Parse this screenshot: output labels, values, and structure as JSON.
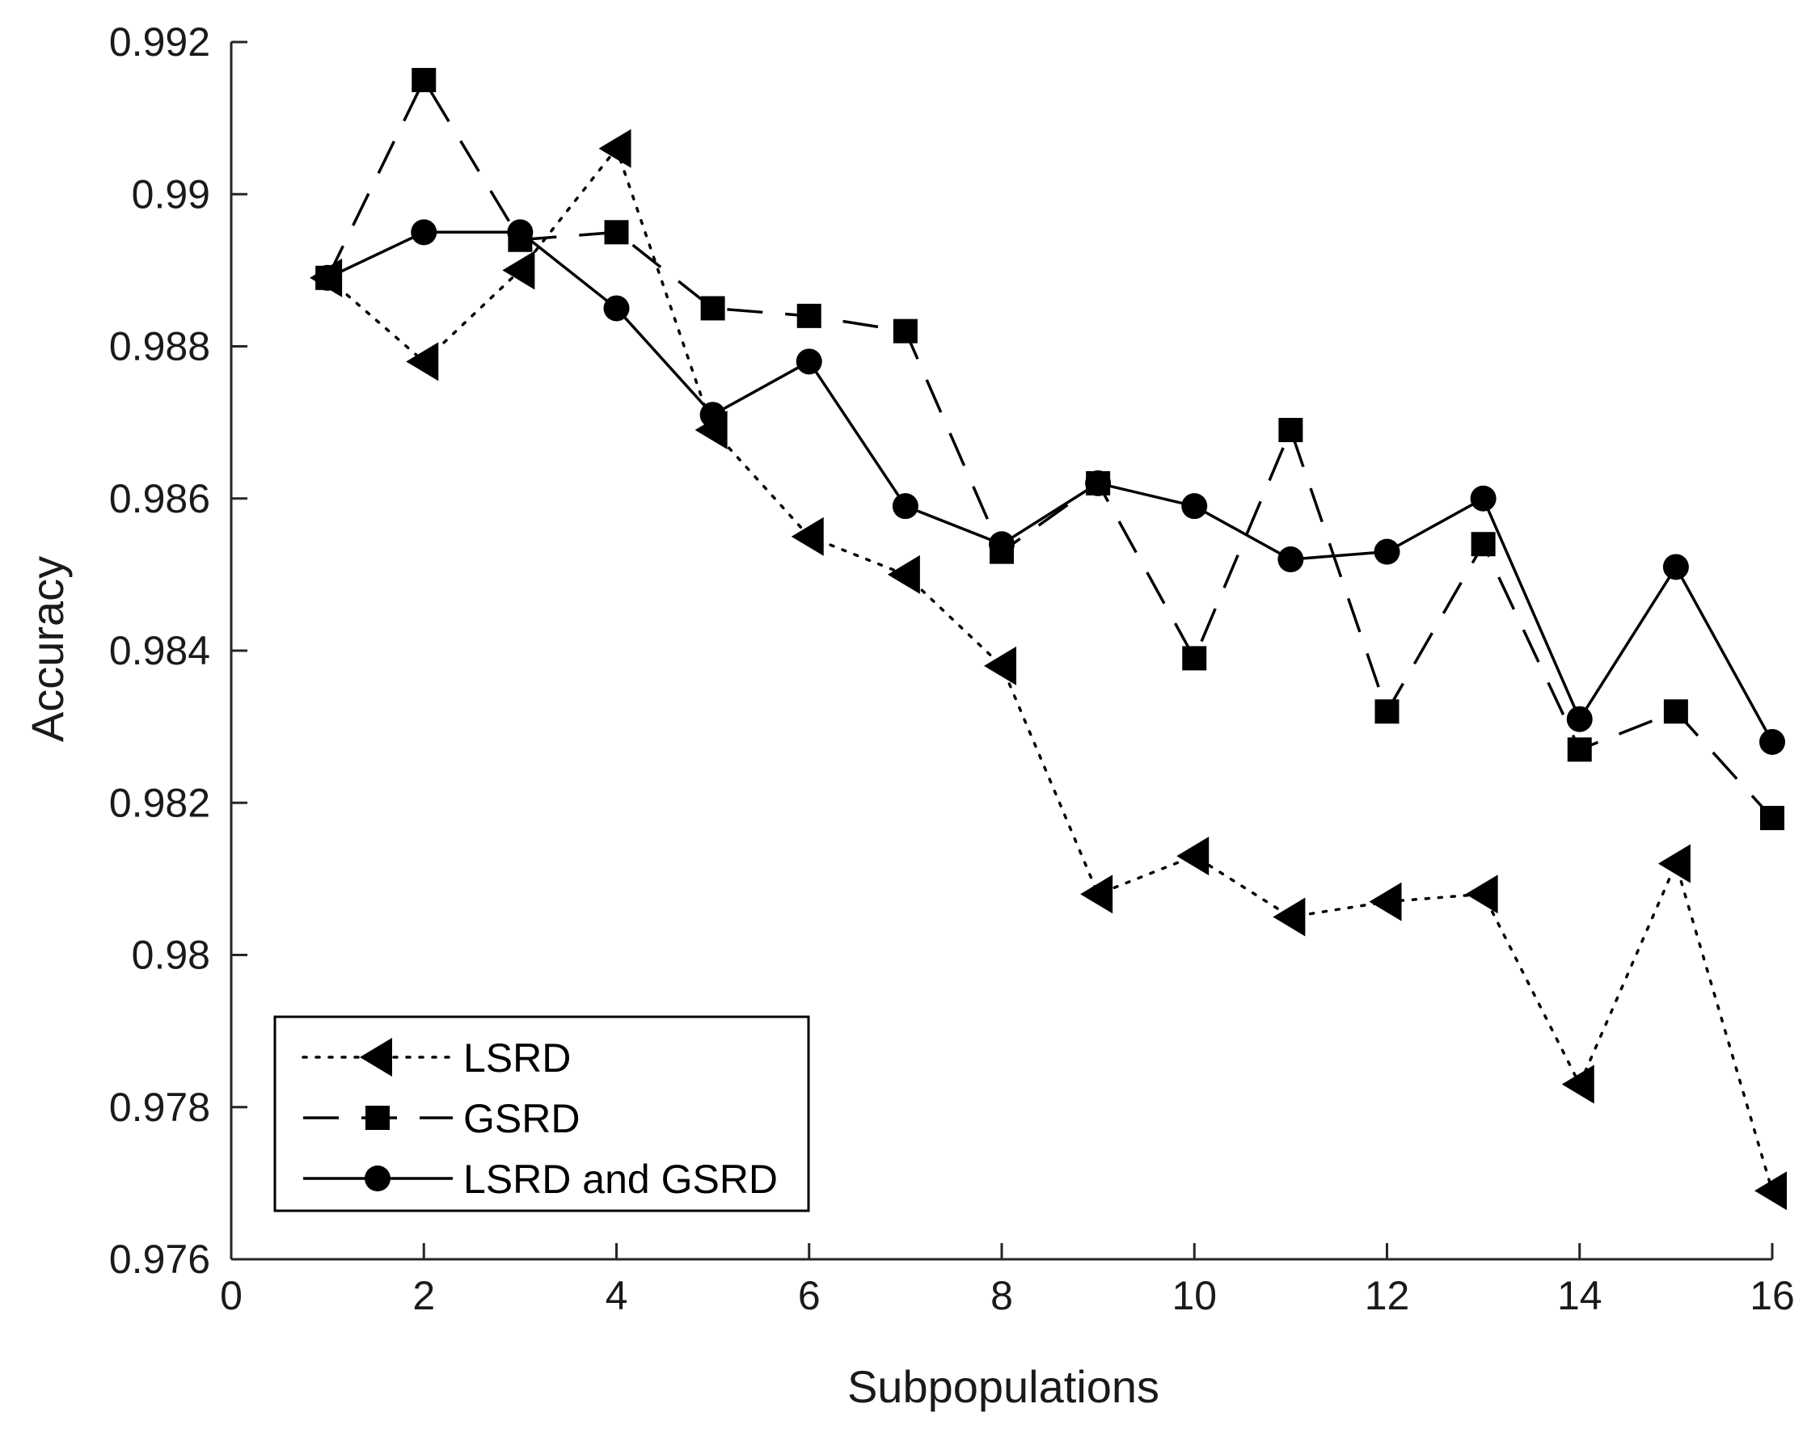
{
  "chart_data": {
    "type": "line",
    "title": "",
    "xlabel": "Subpopulations",
    "ylabel": "Accuracy",
    "xlim": [
      0,
      16
    ],
    "ylim": [
      0.976,
      0.992
    ],
    "xticks": [
      0,
      2,
      4,
      6,
      8,
      10,
      12,
      14,
      16
    ],
    "xtick_labels": [
      "0",
      "2",
      "4",
      "6",
      "8",
      "10",
      "12",
      "14",
      "16"
    ],
    "yticks": [
      0.976,
      0.978,
      0.98,
      0.982,
      0.984,
      0.986,
      0.988,
      0.99,
      0.992
    ],
    "ytick_labels": [
      "0.976",
      "0.978",
      "0.98",
      "0.982",
      "0.984",
      "0.986",
      "0.988",
      "0.99",
      "0.992"
    ],
    "grid": false,
    "legend_position": "bottom-left",
    "x": [
      1,
      2,
      3,
      4,
      5,
      6,
      7,
      8,
      9,
      10,
      11,
      12,
      13,
      14,
      15,
      16
    ],
    "series": [
      {
        "name": "LSRD",
        "line_style": "dotted",
        "marker": "left-triangle",
        "values": [
          0.9889,
          0.9878,
          0.989,
          0.9906,
          0.9869,
          0.9855,
          0.985,
          0.9838,
          0.9808,
          0.9813,
          0.9805,
          0.9807,
          0.9808,
          0.9783,
          0.9812,
          0.9769
        ]
      },
      {
        "name": "GSRD",
        "line_style": "dashed",
        "marker": "square",
        "values": [
          0.9889,
          0.9915,
          0.9894,
          0.9895,
          0.9885,
          0.9884,
          0.9882,
          0.9853,
          0.9862,
          0.9839,
          0.9869,
          0.9832,
          0.9854,
          0.9827,
          0.9832,
          0.9818
        ]
      },
      {
        "name": "LSRD and GSRD",
        "line_style": "solid",
        "marker": "circle",
        "values": [
          0.9889,
          0.9895,
          0.9895,
          0.9885,
          0.9871,
          0.9878,
          0.9859,
          0.9854,
          0.9862,
          0.9859,
          0.9852,
          0.9853,
          0.986,
          0.9831,
          0.9851,
          0.9828
        ]
      }
    ],
    "colors": {
      "line": "#000000",
      "axis": "#262626",
      "background": "#ffffff"
    }
  }
}
